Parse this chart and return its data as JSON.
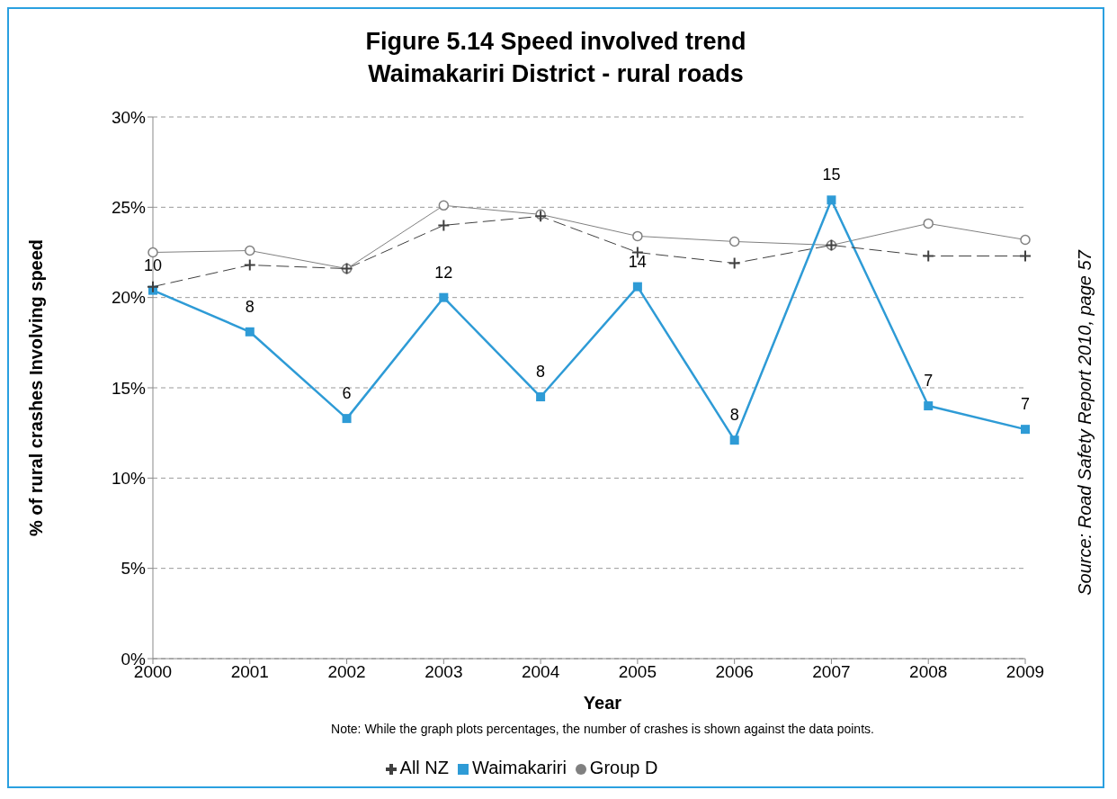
{
  "chart_data": {
    "type": "line",
    "title": "Figure 5.14 Speed involved trend\nWaimakariri District - rural roads",
    "xlabel": "Year",
    "ylabel": "% of rural crashes Involving speed",
    "categories": [
      "2000",
      "2001",
      "2002",
      "2003",
      "2004",
      "2005",
      "2006",
      "2007",
      "2008",
      "2009"
    ],
    "series": [
      {
        "name": "All NZ",
        "color": "#404040",
        "marker": "cross",
        "line_style": "dashed",
        "values": [
          20.6,
          21.8,
          21.6,
          24.0,
          24.5,
          22.5,
          21.9,
          22.9,
          22.3,
          22.3
        ]
      },
      {
        "name": "Waimakariri",
        "color": "#2e9bd6",
        "marker": "square",
        "line_style": "solid",
        "values": [
          20.4,
          18.1,
          13.3,
          20.0,
          14.5,
          20.6,
          12.1,
          25.4,
          14.0,
          12.7
        ]
      },
      {
        "name": "Group D",
        "color": "#808080",
        "marker": "circle",
        "line_style": "solid",
        "values": [
          22.5,
          22.6,
          21.6,
          25.1,
          24.6,
          23.4,
          23.1,
          22.9,
          24.1,
          23.2
        ]
      }
    ],
    "ylim": [
      0,
      30
    ],
    "yticks": [
      {
        "value": 0,
        "label": "0%"
      },
      {
        "value": 5,
        "label": "5%"
      },
      {
        "value": 10,
        "label": "10%"
      },
      {
        "value": 15,
        "label": "15%"
      },
      {
        "value": 20,
        "label": "20%"
      },
      {
        "value": 25,
        "label": "25%"
      },
      {
        "value": 30,
        "label": "30%"
      }
    ],
    "grid": "y",
    "legend": "bottom",
    "annotations": [
      {
        "text": "10",
        "x": "2000",
        "y": 20.4
      },
      {
        "text": "8",
        "x": "2001",
        "y": 18.1
      },
      {
        "text": "6",
        "x": "2002",
        "y": 13.3
      },
      {
        "text": "12",
        "x": "2003",
        "y": 20.0
      },
      {
        "text": "8",
        "x": "2004",
        "y": 14.5
      },
      {
        "text": "14",
        "x": "2005",
        "y": 20.6
      },
      {
        "text": "8",
        "x": "2006",
        "y": 12.1
      },
      {
        "text": "15",
        "x": "2007",
        "y": 25.4
      },
      {
        "text": "7",
        "x": "2008",
        "y": 14.0
      },
      {
        "text": "7",
        "x": "2009",
        "y": 12.7
      },
      "Note: While the graph plots percentages, the number of crashes is shown against the data points.",
      "Source: Road Safety Report 2010, page 57"
    ]
  }
}
